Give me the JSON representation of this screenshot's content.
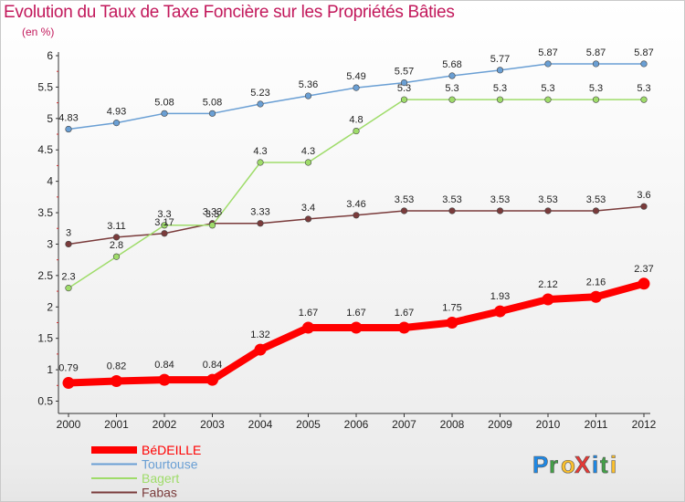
{
  "header": {
    "title": "Evolution du Taux de Taxe Foncière sur les Propriétés Bâties",
    "unit": "(en %)"
  },
  "logo": {
    "text": "ProXiti",
    "letters": [
      "P",
      "r",
      "o",
      "X",
      "i",
      "t",
      "i"
    ],
    "colors": [
      "#1e88e5",
      "#43a047",
      "#fbc02d",
      "#e53935",
      "#1e88e5",
      "#43a047",
      "#fbc02d"
    ]
  },
  "chart_data": {
    "type": "line",
    "x": [
      "2000",
      "2001",
      "2002",
      "2003",
      "2004",
      "2005",
      "2006",
      "2007",
      "2008",
      "2009",
      "2010",
      "2011",
      "2012"
    ],
    "ylim": [
      0.5,
      6
    ],
    "yticks": [
      "0.5",
      "1",
      "1.5",
      "2",
      "2.5",
      "3",
      "3.5",
      "4",
      "4.5",
      "5",
      "5.5",
      "6"
    ],
    "grid": false,
    "legend": "bottom-left",
    "series": [
      {
        "name": "BéDEILLE",
        "color": "#ff0000",
        "values": [
          0.79,
          0.82,
          0.84,
          0.84,
          1.32,
          1.67,
          1.67,
          1.67,
          1.75,
          1.93,
          2.12,
          2.16,
          2.37
        ],
        "labels": [
          "0.79",
          "0.82",
          "0.84",
          "0.84",
          "1.32",
          "1.67",
          "1.67",
          "1.67",
          "1.75",
          "1.93",
          "2.12",
          "2.16",
          "2.37"
        ]
      },
      {
        "name": "Tourtouse",
        "color": "#6a9fd4",
        "values": [
          4.83,
          4.93,
          5.08,
          5.08,
          5.23,
          5.36,
          5.49,
          5.57,
          5.68,
          5.77,
          5.87,
          5.87,
          5.87
        ],
        "labels": [
          "4.83",
          "4.93",
          "5.08",
          "5.08",
          "5.23",
          "5.36",
          "5.49",
          "5.57",
          "5.68",
          "5.77",
          "5.87",
          "5.87",
          "5.87"
        ]
      },
      {
        "name": "Bagert",
        "color": "#9fdc6a",
        "values": [
          2.3,
          2.8,
          3.3,
          3.3,
          4.3,
          4.3,
          4.8,
          5.3,
          5.3,
          5.3,
          5.3,
          5.3,
          5.3
        ],
        "labels": [
          "2.3",
          "2.8",
          "3.3",
          "3.3",
          "4.3",
          "4.3",
          "4.8",
          "5.3",
          "5.3",
          "5.3",
          "5.3",
          "5.3",
          "5.3"
        ]
      },
      {
        "name": "Fabas",
        "color": "#7a3b3b",
        "values": [
          3,
          3.11,
          3.17,
          3.33,
          3.33,
          3.4,
          3.46,
          3.53,
          3.53,
          3.53,
          3.53,
          3.53,
          3.6
        ],
        "labels": [
          "3",
          "3.11",
          "3.17",
          "3.33",
          "3.33",
          "3.4",
          "3.46",
          "3.53",
          "3.53",
          "3.53",
          "3.53",
          "3.53",
          "3.6"
        ]
      }
    ]
  }
}
